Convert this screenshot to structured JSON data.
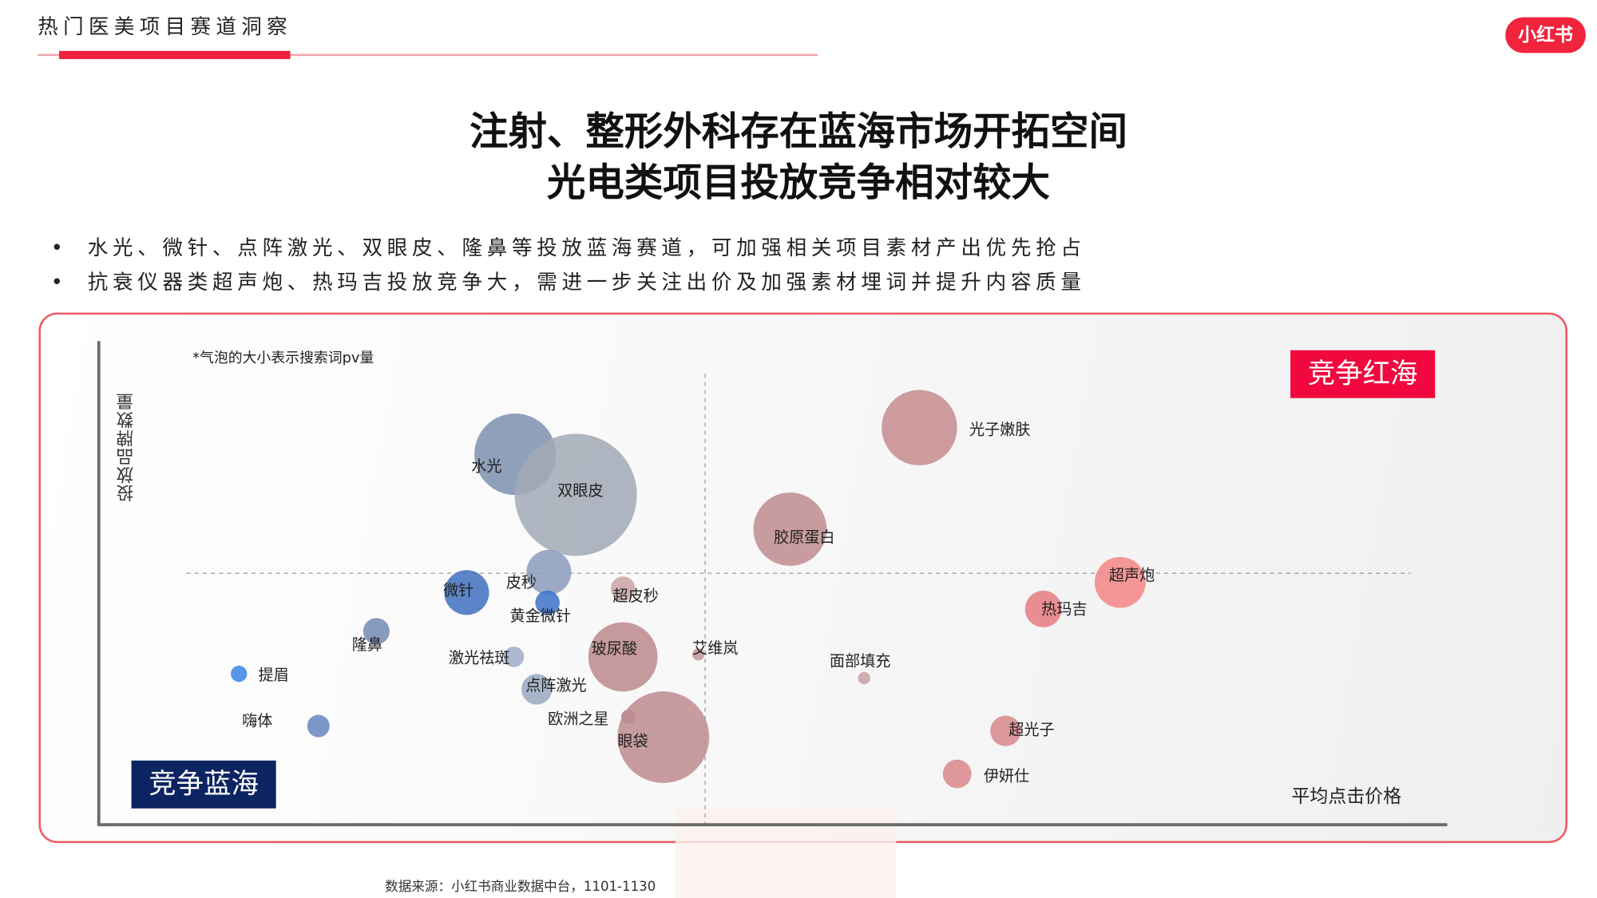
{
  "header": {
    "section_title": "热门医美项目赛道洞察",
    "logo_text": "小红书"
  },
  "title": {
    "line1": "注射、整形外科存在蓝海市场开拓空间",
    "line2": "光电类项目投放竞争相对较大"
  },
  "bullets": [
    {
      "symbol": "•",
      "text": "水光、微针、点阵激光、双眼皮、隆鼻等投放蓝海赛道，可加强相关项目素材产出优先抢占"
    },
    {
      "symbol": "•",
      "text": "抗衰仪器类超声炮、热玛吉投放竞争大，需进一步关注出价及加强素材埋词并提升内容质量"
    }
  ],
  "source": "数据来源：小红书商业数据中台，1101-1130",
  "chart_data": {
    "type": "scatter",
    "subtype": "bubble",
    "title": "",
    "note": "*气泡的大小表示搜索词pv量",
    "xlabel": "平均点击价格",
    "ylabel": "投放品牌数量",
    "xlim": [
      0,
      100
    ],
    "ylim": [
      0,
      100
    ],
    "grid": false,
    "reference_lines": {
      "x": 45,
      "y": 52
    },
    "quadrant_labels": {
      "top_right": "竞争红海",
      "bottom_left": "竞争蓝海"
    },
    "colors": {
      "red_sea": "#f0083e",
      "blue_sea": "#0c2461"
    },
    "points": [
      {
        "name": "水光",
        "x": 30.9,
        "y": 76.6,
        "size": 40,
        "color": "#7b8fae"
      },
      {
        "name": "双眼皮",
        "x": 35.4,
        "y": 68.2,
        "size": 60,
        "color": "#a2a9b6"
      },
      {
        "name": "皮秒",
        "x": 33.4,
        "y": 52.2,
        "size": 22,
        "color": "#8a9cbc"
      },
      {
        "name": "微针",
        "x": 27.3,
        "y": 48.0,
        "size": 22,
        "color": "#3f6fbe"
      },
      {
        "name": "黄金微针",
        "x": 33.3,
        "y": 45.9,
        "size": 12,
        "color": "#3d72c9"
      },
      {
        "name": "超皮秒",
        "x": 38.9,
        "y": 48.8,
        "size": 12,
        "color": "#c9a3a6"
      },
      {
        "name": "隆鼻",
        "x": 20.6,
        "y": 40.0,
        "size": 13,
        "color": "#7389b0"
      },
      {
        "name": "提眉",
        "x": 10.4,
        "y": 31.2,
        "size": 8,
        "color": "#3b82e6"
      },
      {
        "name": "激光祛斑",
        "x": 30.8,
        "y": 34.7,
        "size": 10,
        "color": "#9eacc4"
      },
      {
        "name": "点阵激光",
        "x": 32.5,
        "y": 28.0,
        "size": 15,
        "color": "#9aa8bf"
      },
      {
        "name": "嗨体",
        "x": 16.3,
        "y": 20.4,
        "size": 11,
        "color": "#6586c0"
      },
      {
        "name": "玻尿酸",
        "x": 38.9,
        "y": 34.7,
        "size": 34,
        "color": "#bd8a8c"
      },
      {
        "name": "艾维岚",
        "x": 44.5,
        "y": 35.2,
        "size": 6,
        "color": "#c4979b"
      },
      {
        "name": "欧洲之星",
        "x": 39.3,
        "y": 22.3,
        "size": 7,
        "color": "#b07c80"
      },
      {
        "name": "眼袋",
        "x": 41.9,
        "y": 18.1,
        "size": 45,
        "color": "#bd8c8f"
      },
      {
        "name": "光子嫩肤",
        "x": 60.9,
        "y": 82.1,
        "size": 37,
        "color": "#c58a8d"
      },
      {
        "name": "胶原蛋白",
        "x": 51.3,
        "y": 61.1,
        "size": 36,
        "color": "#bf8c8e"
      },
      {
        "name": "面部填充",
        "x": 56.8,
        "y": 30.3,
        "size": 6,
        "color": "#c4a0a3"
      },
      {
        "name": "超声炮",
        "x": 75.8,
        "y": 50.1,
        "size": 25,
        "color": "#f58585"
      },
      {
        "name": "热玛吉",
        "x": 70.1,
        "y": 44.6,
        "size": 18,
        "color": "#e57b80"
      },
      {
        "name": "超光子",
        "x": 67.3,
        "y": 19.4,
        "size": 15,
        "color": "#d78689"
      },
      {
        "name": "伊妍仕",
        "x": 63.7,
        "y": 10.5,
        "size": 14,
        "color": "#d98689"
      }
    ]
  }
}
